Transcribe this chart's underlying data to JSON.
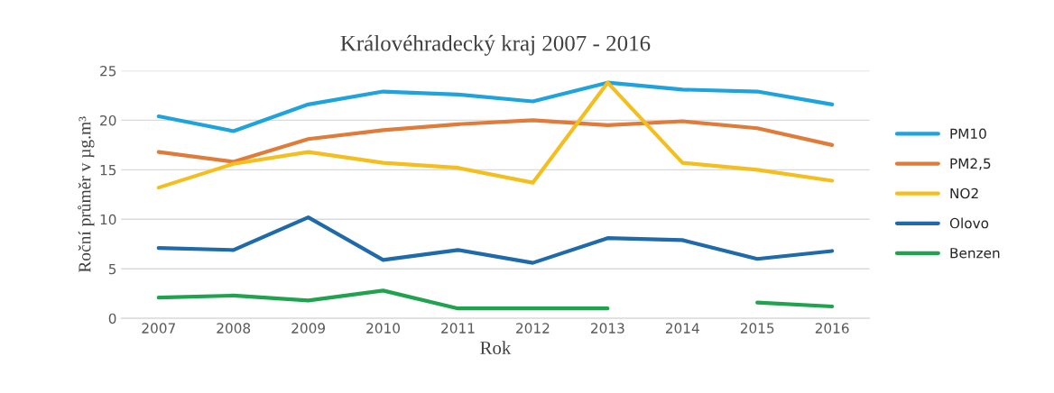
{
  "chart_data": {
    "type": "line",
    "title": "Královéhradecký kraj 2007 - 2016",
    "xlabel": "Rok",
    "ylabel": "Roční průměr v µg.m³",
    "categories": [
      "2007",
      "2008",
      "2009",
      "2010",
      "2011",
      "2012",
      "2013",
      "2014",
      "2015",
      "2016"
    ],
    "series": [
      {
        "name": "PM10",
        "color": "#1fa3dc",
        "values": [
          20.4,
          18.9,
          21.6,
          22.9,
          22.6,
          21.9,
          23.8,
          23.1,
          22.9,
          21.6
        ]
      },
      {
        "name": "PM2,5",
        "color": "#e07b3a",
        "values": [
          16.8,
          15.8,
          18.1,
          19.0,
          19.6,
          20.0,
          19.5,
          19.9,
          19.2,
          17.5
        ]
      },
      {
        "name": "NO2",
        "color": "#f5be1f",
        "values": [
          13.2,
          15.6,
          16.8,
          15.7,
          15.2,
          13.7,
          23.8,
          15.7,
          15.0,
          13.9
        ]
      },
      {
        "name": "Olovo",
        "color": "#1e6aab",
        "values": [
          7.1,
          6.9,
          10.2,
          5.9,
          6.9,
          5.6,
          8.1,
          7.9,
          6.0,
          6.8
        ]
      },
      {
        "name": "Benzen",
        "color": "#1fa34f",
        "values": [
          2.1,
          2.3,
          1.8,
          2.8,
          1.0,
          1.0,
          1.0,
          null,
          1.6,
          1.2
        ]
      }
    ],
    "ylim": [
      0,
      25
    ],
    "yticks": [
      0,
      5,
      10,
      15,
      20,
      25
    ],
    "grid": "y",
    "legend": "right",
    "marker": "none",
    "line_style": "solid"
  }
}
